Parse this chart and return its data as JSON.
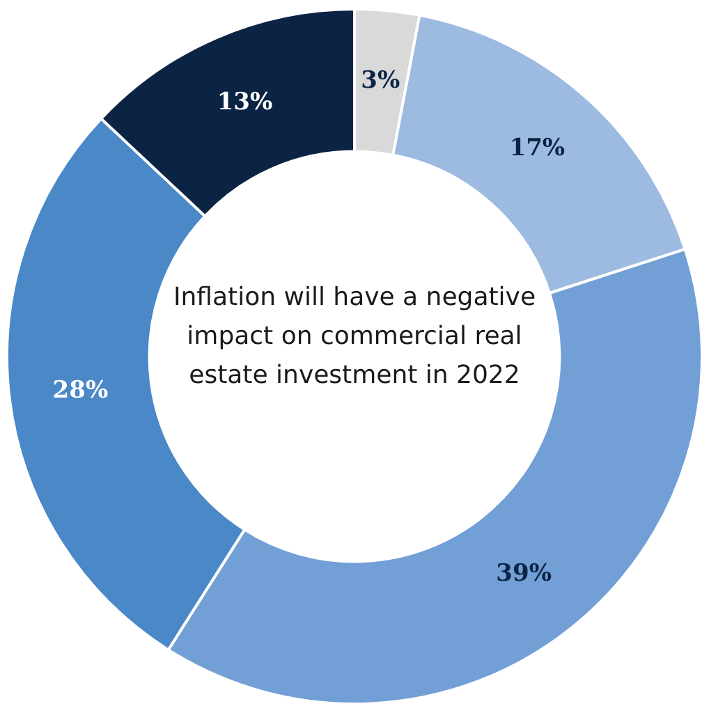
{
  "chart_data": {
    "type": "donut",
    "title": "Inflation will have a negative impact on commercial real estate investment in 2022",
    "categories": [
      null,
      null,
      null,
      null,
      null
    ],
    "values": [
      3,
      17,
      39,
      28,
      13
    ],
    "colors": [
      "#d9d9d9",
      "#9dbae0",
      "#729fd5",
      "#4a88c8",
      "#0c2444"
    ],
    "value_labels": [
      "3%",
      "17%",
      "39%",
      "28%",
      "13%"
    ]
  }
}
